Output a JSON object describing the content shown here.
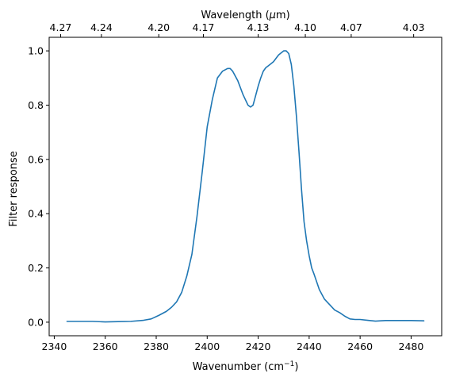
{
  "chart_data": {
    "type": "line",
    "xlabel": "Wavenumber (cm",
    "xlabel_sup": "−1",
    "xlabel_tail": ")",
    "ylabel": "Filter response",
    "top_xlabel": "Wavelength (",
    "top_xlabel_mu": "μ",
    "top_xlabel_tail": "m)",
    "xlim": [
      2338,
      2492
    ],
    "ylim": [
      -0.05,
      1.05
    ],
    "grid": false,
    "line_color": "#1f77b4",
    "x_ticks": [
      {
        "value": 2340,
        "label": "2340"
      },
      {
        "value": 2360,
        "label": "2360"
      },
      {
        "value": 2380,
        "label": "2380"
      },
      {
        "value": 2400,
        "label": "2400"
      },
      {
        "value": 2420,
        "label": "2420"
      },
      {
        "value": 2440,
        "label": "2440"
      },
      {
        "value": 2460,
        "label": "2460"
      },
      {
        "value": 2480,
        "label": "2480"
      }
    ],
    "y_ticks": [
      {
        "value": 0.0,
        "label": "0.0"
      },
      {
        "value": 0.2,
        "label": "0.2"
      },
      {
        "value": 0.4,
        "label": "0.4"
      },
      {
        "value": 0.6,
        "label": "0.6"
      },
      {
        "value": 0.8,
        "label": "0.8"
      },
      {
        "value": 1.0,
        "label": "1.0"
      }
    ],
    "top_ticks": [
      {
        "value": 2342.5,
        "label": "4.27"
      },
      {
        "value": 2358.5,
        "label": "4.24"
      },
      {
        "value": 2381.0,
        "label": "4.20"
      },
      {
        "value": 2398.5,
        "label": "4.17"
      },
      {
        "value": 2420.0,
        "label": "4.13"
      },
      {
        "value": 2438.5,
        "label": "4.10"
      },
      {
        "value": 2456.5,
        "label": "4.07"
      },
      {
        "value": 2481.0,
        "label": "4.03"
      }
    ],
    "series": [
      {
        "x": [
          2345,
          2350,
          2355,
          2360,
          2365,
          2370,
          2375,
          2378,
          2381,
          2384,
          2386,
          2388,
          2390,
          2392,
          2394,
          2396,
          2398,
          2400,
          2402,
          2404,
          2406,
          2408,
          2409,
          2410,
          2412,
          2414,
          2416,
          2417,
          2418,
          2419,
          2420,
          2421,
          2422,
          2423,
          2424,
          2426,
          2428,
          2430,
          2431,
          2432,
          2433,
          2434,
          2435,
          2436,
          2437,
          2438,
          2439,
          2440,
          2441,
          2442,
          2444,
          2446,
          2448,
          2450,
          2452,
          2454,
          2456,
          2458,
          2460,
          2463,
          2466,
          2470,
          2475,
          2480,
          2485
        ],
        "y": [
          0.003,
          0.003,
          0.003,
          0.001,
          0.002,
          0.003,
          0.007,
          0.012,
          0.025,
          0.04,
          0.055,
          0.075,
          0.11,
          0.17,
          0.25,
          0.39,
          0.55,
          0.72,
          0.82,
          0.9,
          0.925,
          0.935,
          0.935,
          0.925,
          0.89,
          0.84,
          0.8,
          0.793,
          0.8,
          0.835,
          0.87,
          0.9,
          0.925,
          0.938,
          0.945,
          0.96,
          0.985,
          1.0,
          1.0,
          0.99,
          0.95,
          0.87,
          0.76,
          0.63,
          0.49,
          0.37,
          0.3,
          0.245,
          0.2,
          0.175,
          0.12,
          0.085,
          0.065,
          0.045,
          0.035,
          0.022,
          0.012,
          0.01,
          0.01,
          0.007,
          0.004,
          0.006,
          0.006,
          0.006,
          0.005
        ]
      }
    ]
  }
}
